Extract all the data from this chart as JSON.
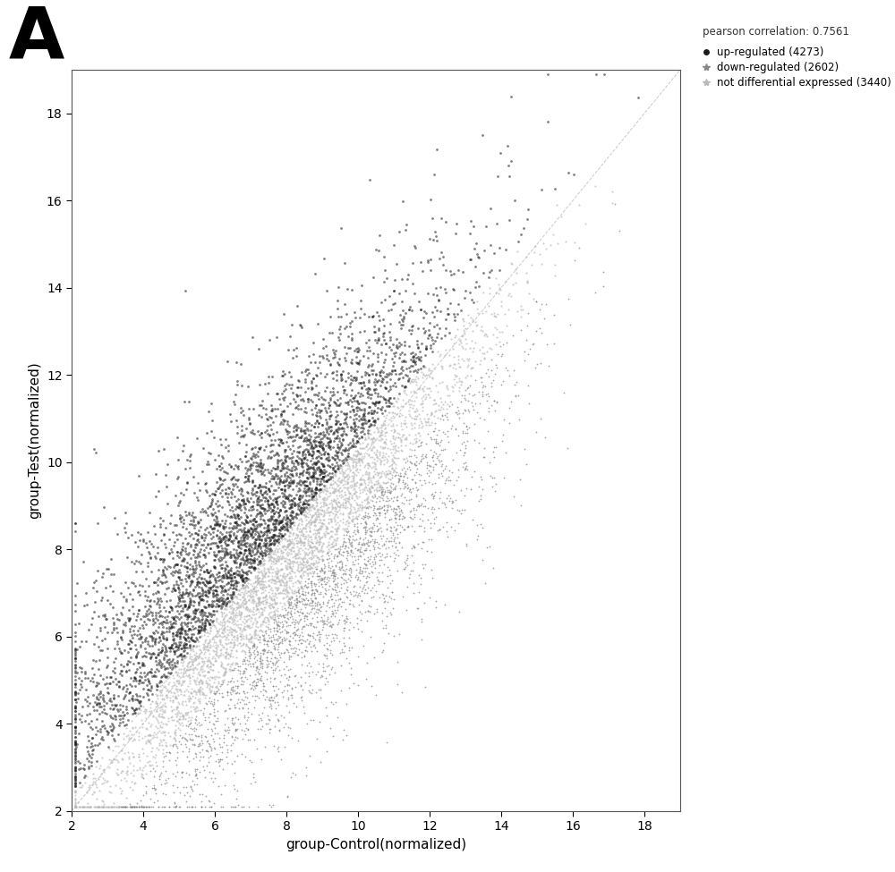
{
  "title_label": "A",
  "pearson_corr": 0.7561,
  "n_up": 4273,
  "n_down": 2602,
  "n_not": 3440,
  "xlabel": "group-Control(normalized)",
  "ylabel": "group-Test(normalized)",
  "xlim": [
    2,
    19
  ],
  "ylim": [
    2,
    19
  ],
  "xticks": [
    2,
    4,
    6,
    8,
    10,
    12,
    14,
    16,
    18
  ],
  "yticks": [
    2,
    4,
    6,
    8,
    10,
    12,
    14,
    16,
    18
  ],
  "up_color": "#1a1a1a",
  "down_color": "#888888",
  "not_color": "#bbbbbb",
  "diag_color": "#bbbbbb",
  "background_color": "#ffffff",
  "seed": 42,
  "figwidth": 10.0,
  "figheight": 9.75,
  "dpi": 100
}
